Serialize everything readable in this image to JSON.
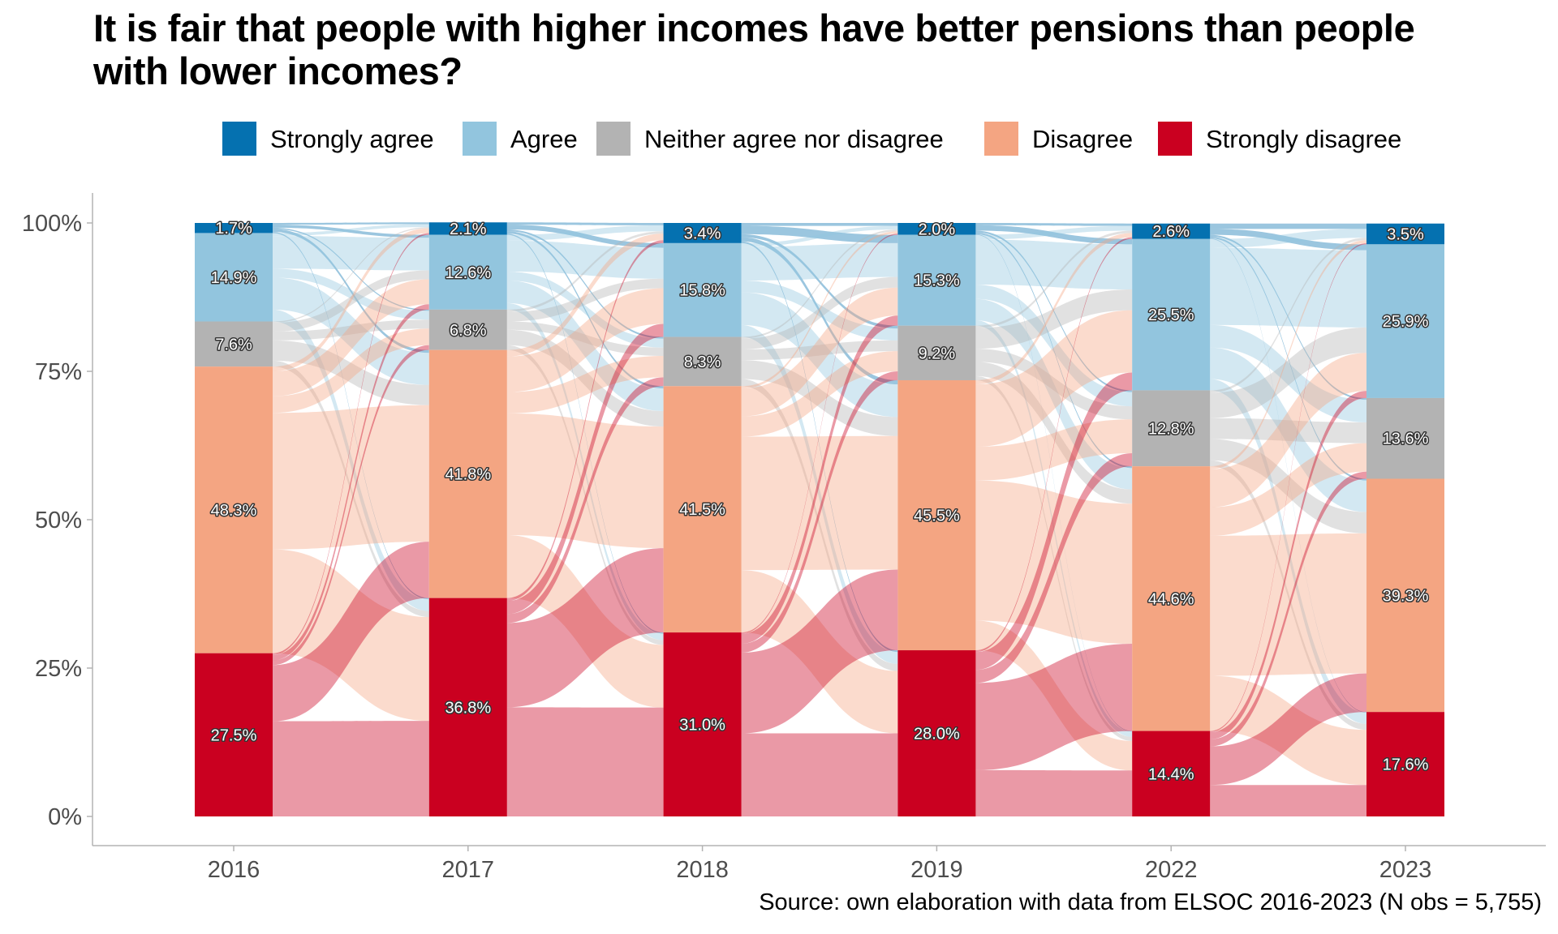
{
  "title": {
    "line1": "It is fair that people with higher incomes have better pensions than people",
    "line2": "with lower incomes?"
  },
  "caption": "Source: own elaboration with data from ELSOC 2016-2023 (N obs = 5,755)",
  "chart_data": {
    "type": "alluvial",
    "title": "It is fair that people with higher incomes have better pensions than people with lower incomes?",
    "xlabel": "",
    "ylabel": "",
    "ylim": [
      0,
      100
    ],
    "y_ticks": [
      "0%",
      "25%",
      "50%",
      "75%",
      "100%"
    ],
    "y_tick_values": [
      0,
      25,
      50,
      75,
      100
    ],
    "grid": false,
    "legend_position": "top",
    "categories": [
      "2016",
      "2017",
      "2018",
      "2019",
      "2022",
      "2023"
    ],
    "series": [
      {
        "name": "Strongly agree",
        "color": "#0571B0",
        "flow_color": "#0571B0",
        "values": [
          1.7,
          2.1,
          3.4,
          2.0,
          2.6,
          3.5
        ],
        "labels": [
          "1.7%",
          "2.1%",
          "3.4%",
          "2.0%",
          "2.6%",
          "3.5%"
        ]
      },
      {
        "name": "Agree",
        "color": "#92C5DE",
        "flow_color": "#92C5DE",
        "values": [
          14.9,
          12.6,
          15.8,
          15.3,
          25.5,
          25.9
        ],
        "labels": [
          "14.9%",
          "12.6%",
          "15.8%",
          "15.3%",
          "25.5%",
          "25.9%"
        ]
      },
      {
        "name": "Neither agree nor disagree",
        "color": "#B3B3B3",
        "flow_color": "#B3B3B3",
        "values": [
          7.6,
          6.8,
          8.3,
          9.2,
          12.8,
          13.6
        ],
        "labels": [
          "7.6%",
          "6.8%",
          "8.3%",
          "9.2%",
          "12.8%",
          "13.6%"
        ]
      },
      {
        "name": "Disagree",
        "color": "#F4A582",
        "flow_color": "#F4A582",
        "values": [
          48.3,
          41.8,
          41.5,
          45.5,
          44.6,
          39.3
        ],
        "labels": [
          "48.3%",
          "41.8%",
          "41.5%",
          "45.5%",
          "44.6%",
          "39.3%"
        ]
      },
      {
        "name": "Strongly disagree",
        "color": "#CA0020",
        "flow_color": "#CA0020",
        "values": [
          27.5,
          36.8,
          31.0,
          28.0,
          14.4,
          17.6
        ],
        "labels": [
          "27.5%",
          "36.8%",
          "31.0%",
          "28.0%",
          "14.4%",
          "17.6%"
        ]
      }
    ],
    "transitions_note": "Approximate flow shares (% of total) between consecutive waves; rows = source category, columns = target category, ordered Strongly agree, Agree, Neither, Disagree, Strongly disagree",
    "transitions": [
      {
        "from": "2016",
        "to": "2017",
        "matrix": [
          [
            0.3,
            0.5,
            0.2,
            0.5,
            0.2
          ],
          [
            0.5,
            5.5,
            1.5,
            5.4,
            2.0
          ],
          [
            0.2,
            1.5,
            1.5,
            3.4,
            1.0
          ],
          [
            0.8,
            4.2,
            2.8,
            23.0,
            17.5
          ],
          [
            0.3,
            0.9,
            0.8,
            9.5,
            16.1
          ]
        ]
      },
      {
        "from": "2017",
        "to": "2018",
        "matrix": [
          [
            0.4,
            0.8,
            0.3,
            0.4,
            0.2
          ],
          [
            1.0,
            5.2,
            1.5,
            3.8,
            1.1
          ],
          [
            0.4,
            1.6,
            1.4,
            2.6,
            0.8
          ],
          [
            1.1,
            6.0,
            3.6,
            20.5,
            10.6
          ],
          [
            0.5,
            2.2,
            1.5,
            14.2,
            18.4
          ]
        ]
      },
      {
        "from": "2018",
        "to": "2019",
        "matrix": [
          [
            0.5,
            1.4,
            0.5,
            0.7,
            0.3
          ],
          [
            0.6,
            5.7,
            2.0,
            5.5,
            2.0
          ],
          [
            0.3,
            1.8,
            1.8,
            3.2,
            1.2
          ],
          [
            0.4,
            4.7,
            3.4,
            22.5,
            10.5
          ],
          [
            0.2,
            1.7,
            1.5,
            13.6,
            14.0
          ]
        ]
      },
      {
        "from": "2019",
        "to": "2022",
        "matrix": [
          [
            0.4,
            0.9,
            0.3,
            0.3,
            0.1
          ],
          [
            0.8,
            7.6,
            2.4,
            3.6,
            0.9
          ],
          [
            0.4,
            3.5,
            2.2,
            2.4,
            0.7
          ],
          [
            0.7,
            10.5,
            5.7,
            23.6,
            5.0
          ],
          [
            0.3,
            3.0,
            2.2,
            14.7,
            7.8
          ]
        ]
      },
      {
        "from": "2022",
        "to": "2023",
        "matrix": [
          [
            0.9,
            1.0,
            0.3,
            0.3,
            0.1
          ],
          [
            1.5,
            13.0,
            3.8,
            5.3,
            1.9
          ],
          [
            0.4,
            4.3,
            3.5,
            3.6,
            1.0
          ],
          [
            0.5,
            6.4,
            4.8,
            23.6,
            9.3
          ],
          [
            0.2,
            1.2,
            1.2,
            6.5,
            5.3
          ]
        ]
      }
    ]
  }
}
